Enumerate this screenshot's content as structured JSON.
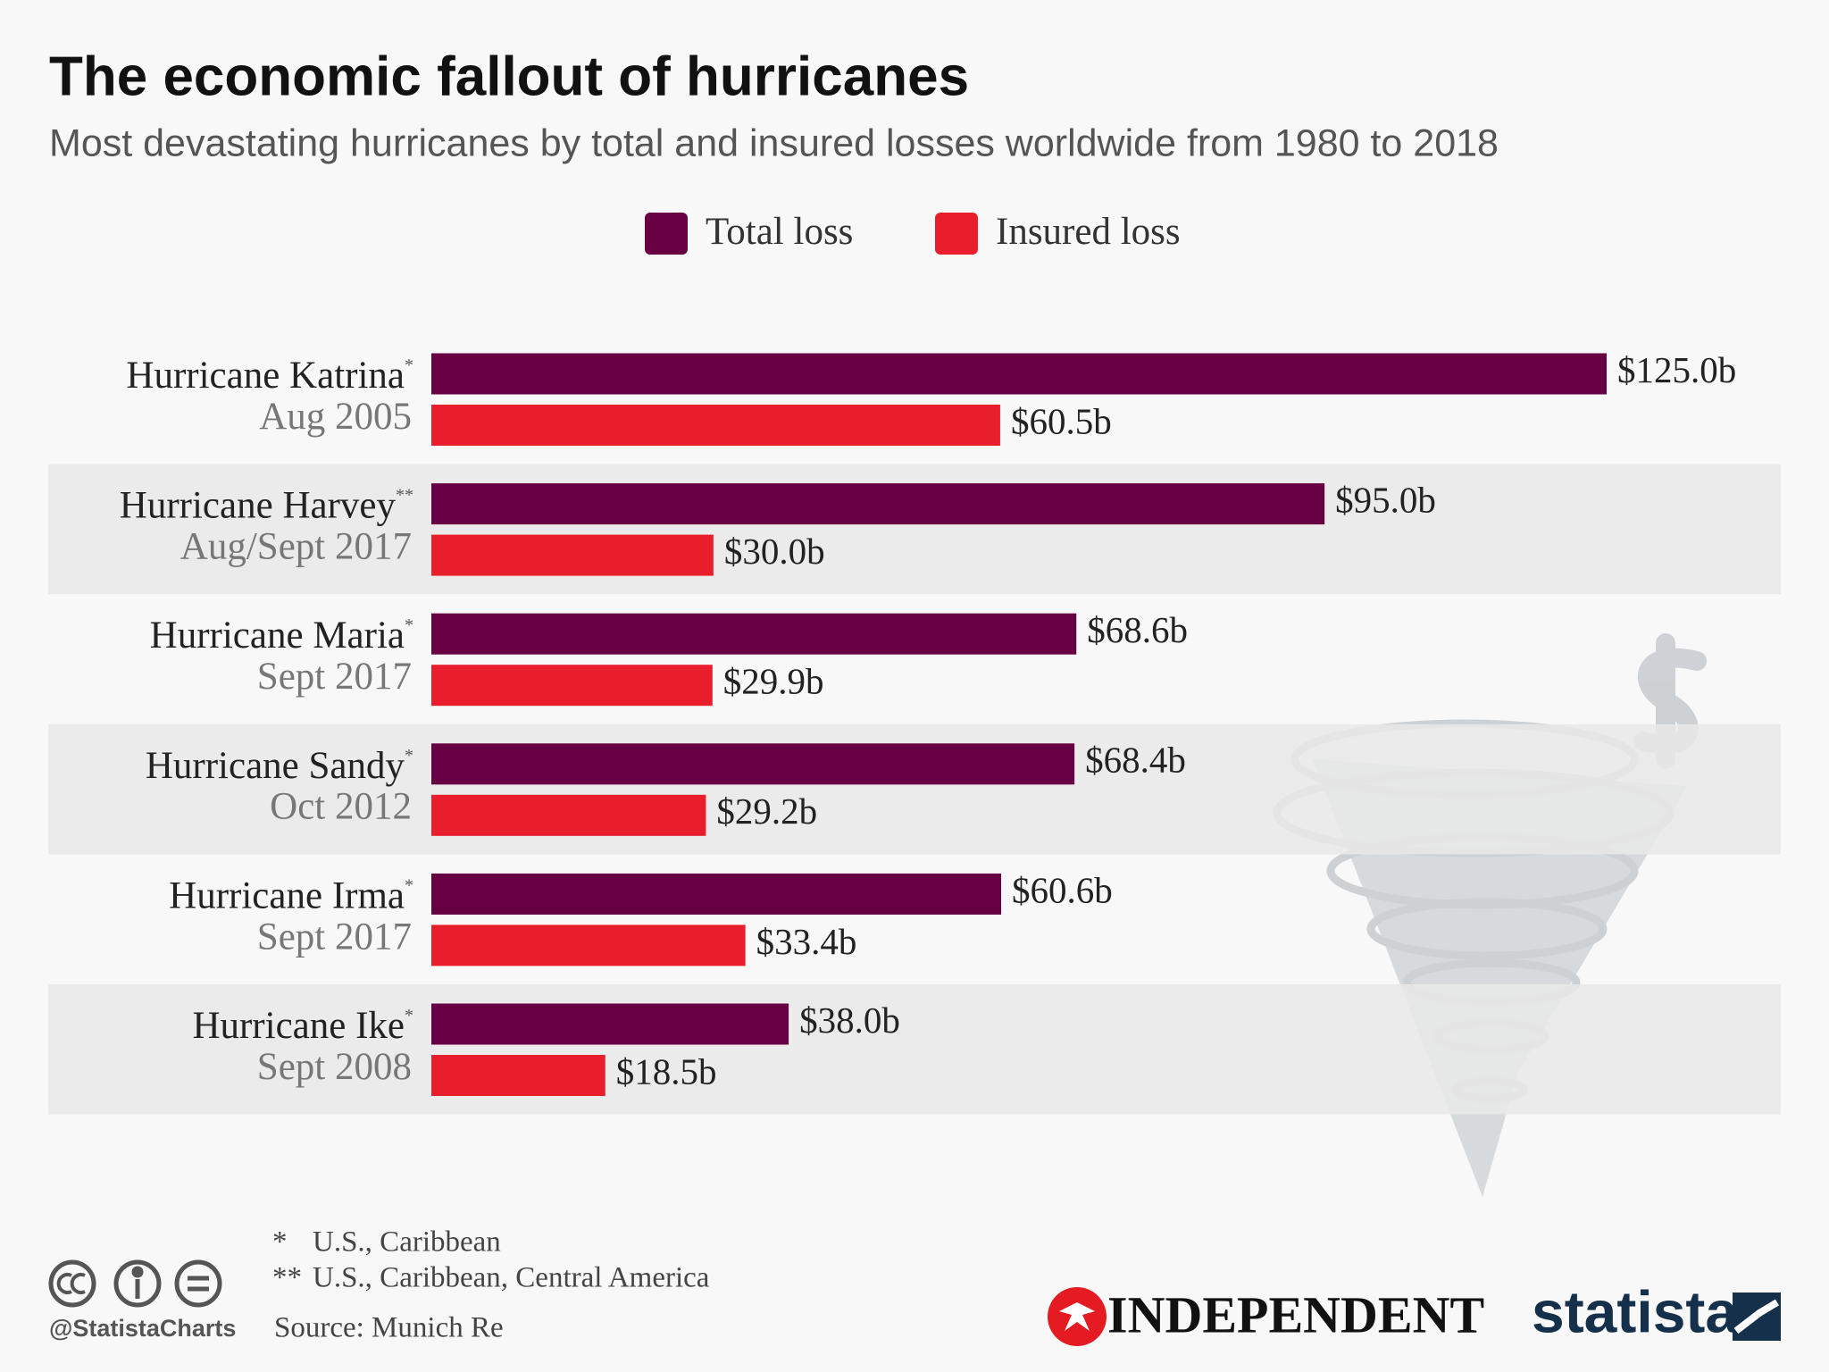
{
  "chart_data": {
    "type": "bar",
    "orientation": "horizontal",
    "title": "The economic fallout of hurricanes",
    "subtitle": "Most devastating hurricanes by total and insured losses worldwide from 1980 to 2018",
    "categories": [
      "Hurricane Katrina",
      "Hurricane Harvey",
      "Hurricane Maria",
      "Hurricane Sandy",
      "Hurricane Irma",
      "Hurricane Ike"
    ],
    "category_notes": [
      "*",
      "**",
      "*",
      "*",
      "*",
      "*"
    ],
    "category_dates": [
      "Aug 2005",
      "Aug/Sept 2017",
      "Sept 2017",
      "Oct 2012",
      "Sept 2017",
      "Sept 2008"
    ],
    "series": [
      {
        "name": "Total loss",
        "color": "#660042",
        "values": [
          125.0,
          95.0,
          68.6,
          68.4,
          60.6,
          38.0
        ],
        "value_labels": [
          "$125.0b",
          "$95.0b",
          "$68.6b",
          "$68.4b",
          "$60.6b",
          "$38.0b"
        ]
      },
      {
        "name": "Insured loss",
        "color": "#e91e2d",
        "values": [
          60.5,
          30.0,
          29.9,
          29.2,
          33.4,
          18.5
        ],
        "value_labels": [
          "$60.5b",
          "$30.0b",
          "$29.9b",
          "$29.2b",
          "$33.4b",
          "$18.5b"
        ]
      }
    ],
    "footnotes": [
      {
        "marker": "*",
        "text": "U.S., Caribbean"
      },
      {
        "marker": "**",
        "text": "U.S., Caribbean, Central America"
      }
    ],
    "source": "Source: Munich Re",
    "credit": "@StatistaCharts",
    "logos": [
      "INDEPENDENT",
      "statista"
    ]
  }
}
